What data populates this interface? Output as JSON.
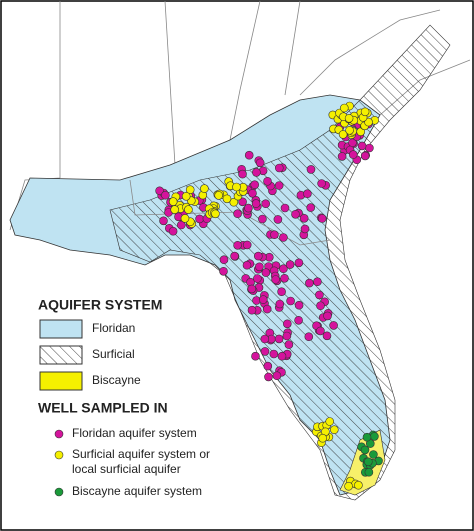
{
  "legend": {
    "aquifer_title": "AQUIFER SYSTEM",
    "aquifer_items": [
      "Floridan",
      "Surficial",
      "Biscayne"
    ],
    "well_title": "WELL SAMPLED IN",
    "well_items": [
      "Floridan aquifer system",
      [
        "Surficial aquifer system or",
        "local surficial aquifer"
      ],
      "Biscayne aquifer system"
    ]
  }
}
